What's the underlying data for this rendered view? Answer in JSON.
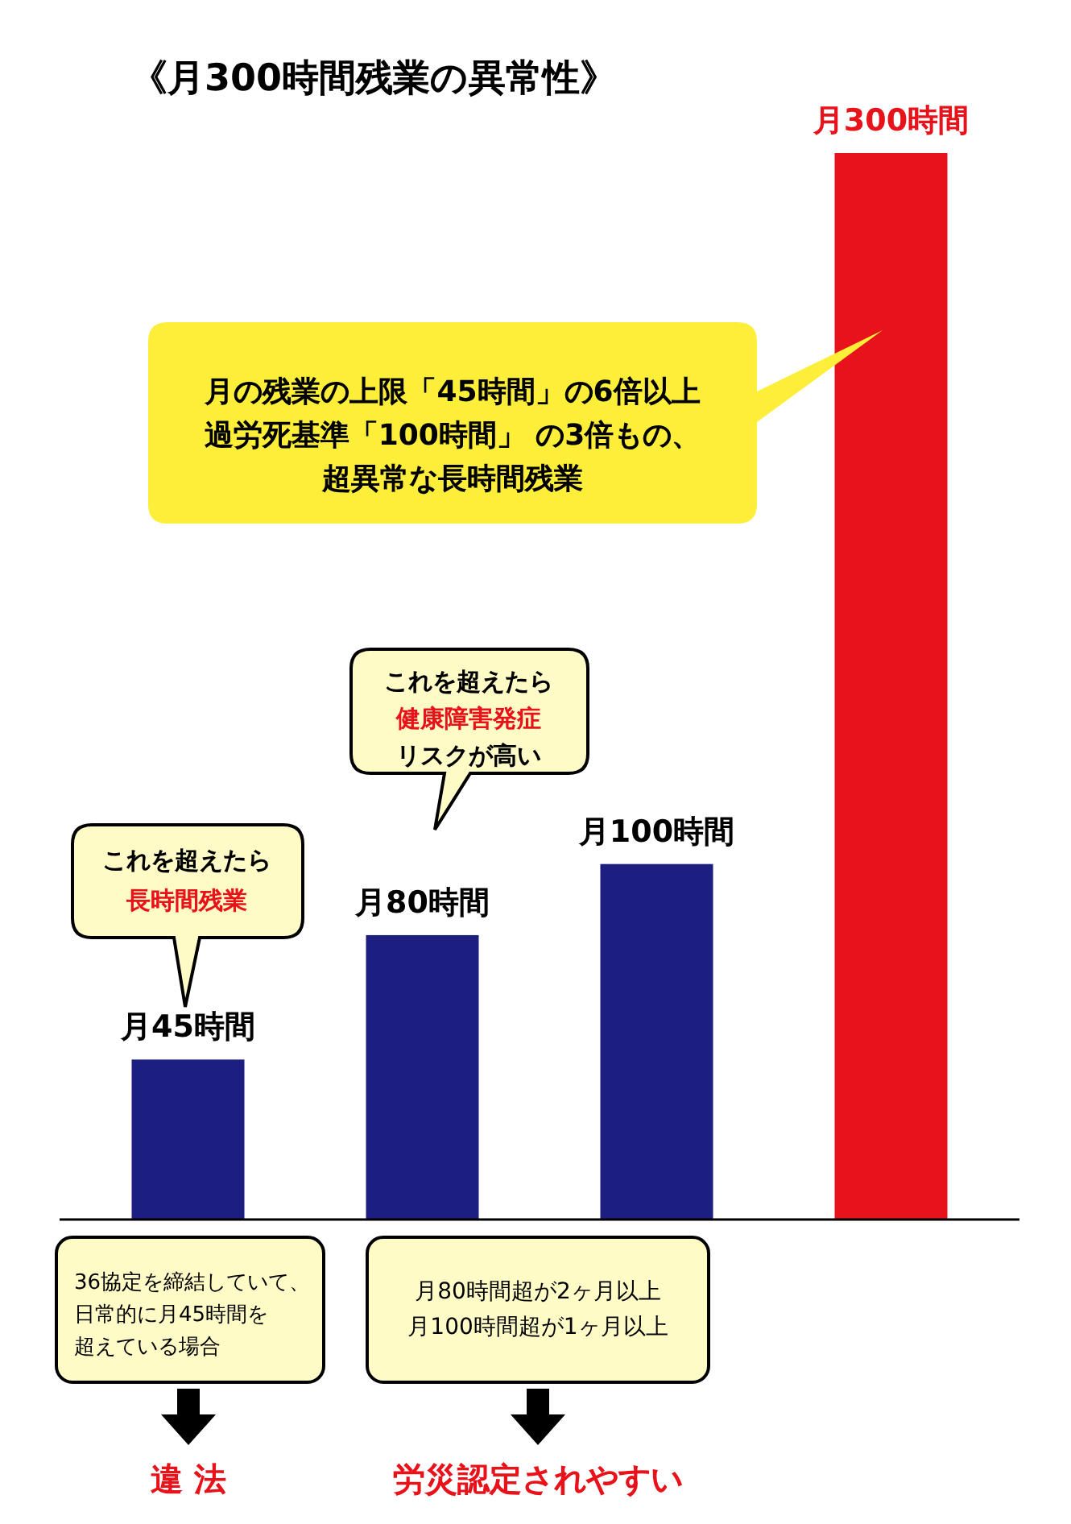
{
  "chart_data": {
    "type": "bar",
    "title": "《月300時間残業の異常性》",
    "categories": [
      null,
      null,
      null,
      null
    ],
    "values": [
      45,
      80,
      100,
      300
    ],
    "value_labels": [
      "月45時間",
      "月80時間",
      "月100時間",
      "月300時間"
    ],
    "colors": [
      "#1d1f80",
      "#1d1f80",
      "#1d1f80",
      "#e8121a"
    ],
    "annotations": [
      "月の残業の上限「45時間」の6倍以上",
      "過労死基準「100時間」 の3倍もの、",
      "超異常な長時間残業",
      "これを超えたら",
      "健康障害発症",
      "リスクが高い",
      "これを超えたら",
      "長時間残業",
      "36協定を締結していて、",
      "日常的に月45時間を",
      "超えている場合",
      "月80時間超が2ヶ月以上",
      "月100時間超が1ヶ月以上",
      "違 法",
      "労災認定されやすい"
    ]
  }
}
